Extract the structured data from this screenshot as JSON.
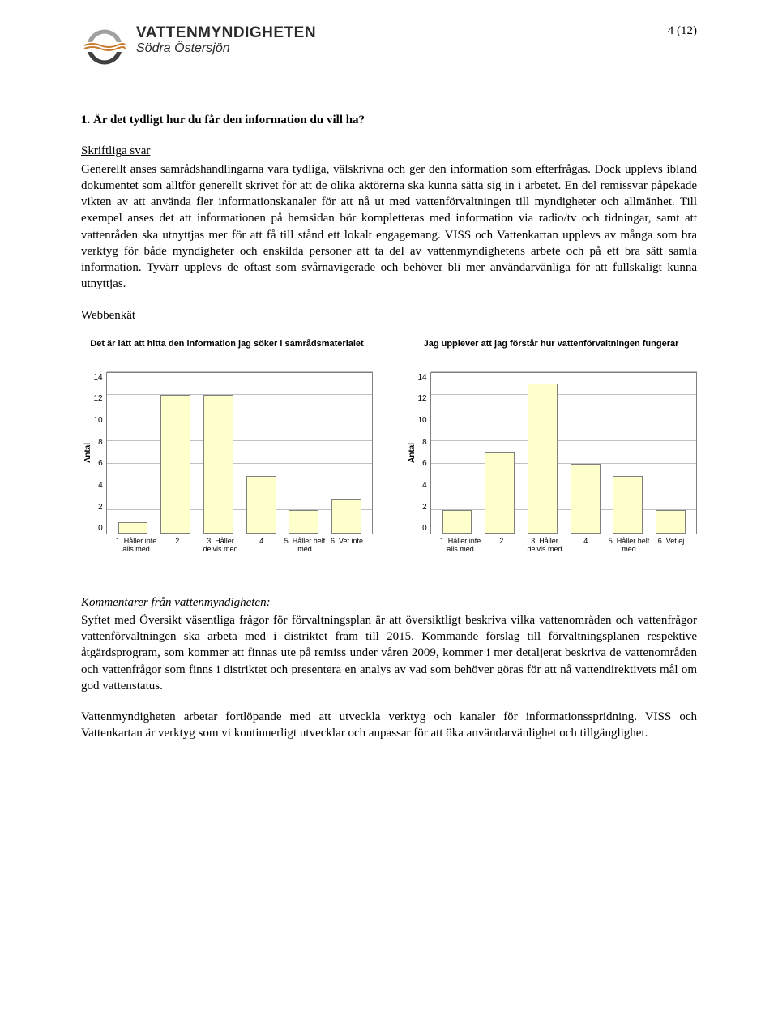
{
  "header": {
    "logo_main": "VATTENMYNDIGHETEN",
    "logo_sub": "Södra Östersjön",
    "page_number": "4 (12)"
  },
  "question": {
    "heading": "1. Är det tydligt hur du får den information du vill ha?",
    "skriftliga_label": "Skriftliga svar",
    "skriftliga_text": "Generellt anses samrådshandlingarna vara tydliga, välskrivna och ger den information som efterfrågas. Dock upplevs ibland dokumentet som alltför generellt skrivet för att de olika aktörerna ska kunna sätta sig in i arbetet. En del remissvar påpekade vikten av att använda fler informationskanaler för att nå ut med vattenförvaltningen till myndigheter och allmänhet. Till exempel anses det att informationen på hemsidan bör kompletteras med information via radio/tv och tidningar, samt att vattenråden ska utnyttjas mer för att få till stånd ett lokalt engagemang. VISS och Vattenkartan upplevs av många som bra verktyg för både myndigheter och enskilda personer att ta del av vattenmyndighetens arbete och på ett bra sätt samla information. Tyvärr upplevs de oftast som svårnavigerade och behöver bli mer användarvänliga för att fullskaligt kunna utnyttjas.",
    "webbenkat_label": "Webbenkät"
  },
  "chart1": {
    "type": "bar",
    "title": "Det är lätt att hitta den information jag söker i samrådsmaterialet",
    "ylabel": "Antal",
    "ylim_max": 14,
    "ytick_step": 2,
    "bar_color": "#ffffcc",
    "bar_border": "#808080",
    "grid_color": "#c0c0c0",
    "categories": [
      "1. Håller inte alls med",
      "2.",
      "3. Håller delvis med",
      "4.",
      "5. Håller helt med",
      "6. Vet inte"
    ],
    "values": [
      1,
      12,
      12,
      5,
      2,
      3
    ]
  },
  "chart2": {
    "type": "bar",
    "title": "Jag upplever att jag förstår hur vattenförvaltningen fungerar",
    "ylabel": "Antal",
    "ylim_max": 14,
    "ytick_step": 2,
    "bar_color": "#ffffcc",
    "bar_border": "#808080",
    "grid_color": "#c0c0c0",
    "categories": [
      "1. Håller inte alls med",
      "2.",
      "3. Håller delvis med",
      "4.",
      "5. Håller helt med",
      "6. Vet ej"
    ],
    "values": [
      2,
      7,
      13,
      6,
      5,
      2
    ]
  },
  "comments": {
    "heading": "Kommentarer från vattenmyndigheten:",
    "p1": "Syftet med Översikt väsentliga frågor för förvaltningsplan är att översiktligt beskriva vilka vattenområden och vattenfrågor vattenförvaltningen ska arbeta med i distriktet fram till 2015. Kommande förslag till förvaltningsplanen respektive åtgärdsprogram, som kommer att finnas ute på remiss under våren 2009, kommer i mer detaljerat beskriva de vattenområden och vattenfrågor som finns i distriktet och presentera en analys av vad som behöver göras för att nå vattendirektivets mål om god vattenstatus.",
    "p2": "Vattenmyndigheten arbetar fortlöpande med att utveckla verktyg och kanaler för informationsspridning. VISS och Vattenkartan är verktyg som vi kontinuerligt utvecklar och anpassar för att öka användarvänlighet och tillgänglighet."
  }
}
